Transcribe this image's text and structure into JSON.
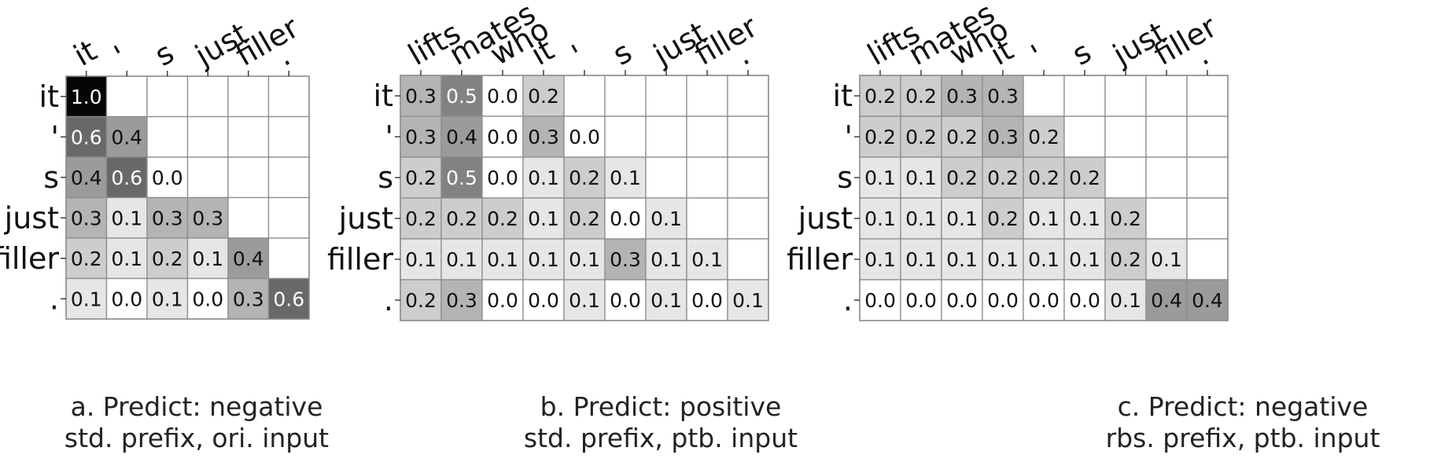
{
  "chart_data": [
    {
      "type": "heatmap",
      "x_tokens": [
        "it",
        "'",
        "s",
        "just",
        "filler",
        "."
      ],
      "y_tokens": [
        "it",
        "'",
        "s",
        "just",
        "filler",
        "."
      ],
      "values": [
        [
          1.0,
          null,
          null,
          null,
          null,
          null
        ],
        [
          0.6,
          0.4,
          null,
          null,
          null,
          null
        ],
        [
          0.4,
          0.6,
          0.0,
          null,
          null,
          null
        ],
        [
          0.3,
          0.1,
          0.3,
          0.3,
          null,
          null
        ],
        [
          0.2,
          0.1,
          0.2,
          0.1,
          0.4,
          null
        ],
        [
          0.1,
          0.0,
          0.1,
          0.0,
          0.3,
          0.6
        ]
      ],
      "caption_line1": "a. Predict: negative",
      "caption_line2": "std. prefix, ori. input",
      "colormap": "greys"
    },
    {
      "type": "heatmap",
      "x_tokens": [
        "lifts",
        "mates",
        "who",
        "it",
        "'",
        "s",
        "just",
        "filler",
        "."
      ],
      "y_tokens": [
        "it",
        "'",
        "s",
        "just",
        "filler",
        "."
      ],
      "values": [
        [
          0.3,
          0.5,
          0.0,
          0.2,
          null,
          null,
          null,
          null,
          null
        ],
        [
          0.3,
          0.4,
          0.0,
          0.3,
          0.0,
          null,
          null,
          null,
          null
        ],
        [
          0.2,
          0.5,
          0.0,
          0.1,
          0.2,
          0.1,
          null,
          null,
          null
        ],
        [
          0.2,
          0.2,
          0.2,
          0.1,
          0.2,
          0.0,
          0.1,
          null,
          null
        ],
        [
          0.1,
          0.1,
          0.1,
          0.1,
          0.1,
          0.3,
          0.1,
          0.1,
          null
        ],
        [
          0.2,
          0.3,
          0.0,
          0.0,
          0.1,
          0.0,
          0.1,
          0.0,
          0.1
        ]
      ],
      "caption_line1": "b. Predict: positive",
      "caption_line2": "std. prefix, ptb. input",
      "colormap": "greys"
    },
    {
      "type": "heatmap",
      "x_tokens": [
        "lifts",
        "mates",
        "who",
        "it",
        "'",
        "s",
        "just",
        "filler",
        "."
      ],
      "y_tokens": [
        "it",
        "'",
        "s",
        "just",
        "filler",
        "."
      ],
      "values": [
        [
          0.2,
          0.2,
          0.3,
          0.3,
          null,
          null,
          null,
          null,
          null
        ],
        [
          0.2,
          0.2,
          0.2,
          0.3,
          0.2,
          null,
          null,
          null,
          null
        ],
        [
          0.1,
          0.1,
          0.2,
          0.2,
          0.2,
          0.2,
          null,
          null,
          null
        ],
        [
          0.1,
          0.1,
          0.1,
          0.2,
          0.1,
          0.1,
          0.2,
          null,
          null
        ],
        [
          0.1,
          0.1,
          0.1,
          0.1,
          0.1,
          0.1,
          0.2,
          0.1,
          null
        ],
        [
          0.0,
          0.0,
          0.0,
          0.0,
          0.0,
          0.0,
          0.1,
          0.4,
          0.4
        ]
      ],
      "caption_line1": "c. Predict: negative",
      "caption_line2": "rbs. prefix, ptb. input",
      "colormap": "greys"
    }
  ]
}
